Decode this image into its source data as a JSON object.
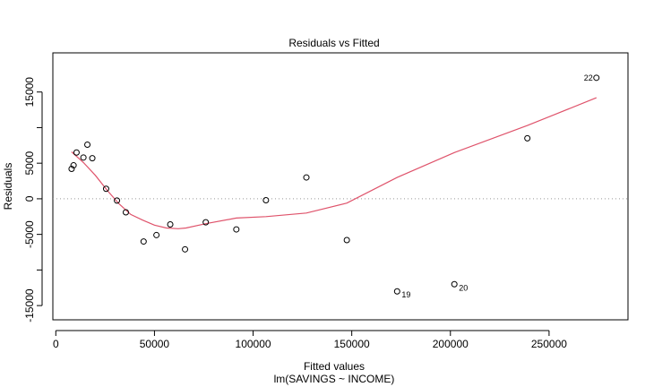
{
  "chart_data": {
    "type": "scatter",
    "title": "Residuals vs Fitted",
    "xlabel": "Fitted values",
    "subtitle": "lm(SAVINGS ~ INCOME)",
    "ylabel": "Residuals",
    "xlim": [
      -1500,
      290000
    ],
    "ylim": [
      -17000,
      20500
    ],
    "x_ticks": [
      0,
      50000,
      100000,
      150000,
      200000,
      250000
    ],
    "x_tick_labels": [
      "0",
      "50000",
      "100000",
      "150000",
      "200000",
      "250000"
    ],
    "y_ticks": [
      -15000,
      -10000,
      -5000,
      0,
      5000,
      10000,
      15000
    ],
    "y_tick_labels": [
      "-15000",
      "",
      "-5000",
      "0",
      "5000",
      "",
      "15000"
    ],
    "reference_line": 0,
    "points": {
      "x": [
        8000,
        9000,
        10500,
        14000,
        16000,
        18500,
        25500,
        31000,
        35500,
        44500,
        51000,
        58000,
        65500,
        76000,
        91500,
        106500,
        127000,
        147500,
        173000,
        202000,
        239000,
        274000
      ],
      "y": [
        4200,
        4700,
        6500,
        5800,
        7600,
        5700,
        1400,
        -250,
        -1900,
        -6000,
        -5100,
        -3600,
        -7100,
        -3300,
        -4300,
        -200,
        3000,
        -5800,
        -13000,
        -12000,
        8500,
        17000
      ],
      "labels": [
        "",
        "",
        "",
        "",
        "",
        "",
        "",
        "",
        "",
        "",
        "",
        "",
        "",
        "",
        "",
        "",
        "",
        "",
        "19",
        "20",
        "",
        "22"
      ]
    },
    "smooth": {
      "color": "#DF536B",
      "x": [
        8000,
        14000,
        20000,
        26000,
        32000,
        38000,
        44000,
        50000,
        56000,
        62000,
        66000,
        76000,
        91500,
        106500,
        127000,
        147500,
        173000,
        202000,
        239000,
        274000
      ],
      "y": [
        6600,
        5100,
        3300,
        1200,
        -700,
        -2200,
        -3000,
        -3700,
        -4100,
        -4200,
        -4100,
        -3500,
        -2700,
        -2500,
        -2000,
        -600,
        3000,
        6500,
        10300,
        14200
      ]
    }
  }
}
